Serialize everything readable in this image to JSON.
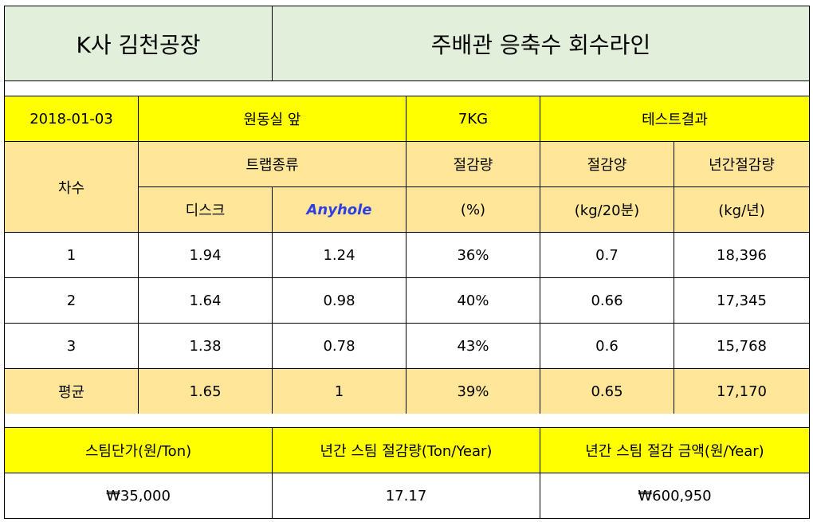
{
  "header": {
    "company": "K사 김천공장",
    "line": "주배관 응축수 회수라인"
  },
  "info": {
    "date": "2018-01-03",
    "location": "원동실 앞",
    "pressure": "7KG",
    "result": "테스트결과"
  },
  "columns": {
    "round": "차수",
    "trap_type": "트랩종류",
    "disc": "디스크",
    "anyhole": "Anyhole",
    "saving_rate": "절감량",
    "saving_rate_unit": "(%)",
    "saving_amount": "절감양",
    "saving_amount_unit": "(kg/20분)",
    "annual_saving": "년간절감량",
    "annual_saving_unit": "(kg/년)"
  },
  "rows": [
    {
      "round": "1",
      "disc": "1.94",
      "anyhole": "1.24",
      "rate": "36%",
      "amount": "0.7",
      "annual": "18,396"
    },
    {
      "round": "2",
      "disc": "1.64",
      "anyhole": "0.98",
      "rate": "40%",
      "amount": "0.66",
      "annual": "17,345"
    },
    {
      "round": "3",
      "disc": "1.38",
      "anyhole": "0.78",
      "rate": "43%",
      "amount": "0.6",
      "annual": "15,768"
    }
  ],
  "average": {
    "round": "평균",
    "disc": "1.65",
    "anyhole": "1",
    "rate": "39%",
    "amount": "0.65",
    "annual": "17,170"
  },
  "summary": {
    "steam_price_label": "스팀단가(원/Ton)",
    "annual_steam_saving_label": "년간 스팀 절감량(Ton/Year)",
    "annual_saving_amount_label": "년간 스팀 절감 금액(원/Year)",
    "steam_price": "₩35,000",
    "annual_steam_saving": "17.17",
    "annual_saving_amount": "₩600,950"
  }
}
